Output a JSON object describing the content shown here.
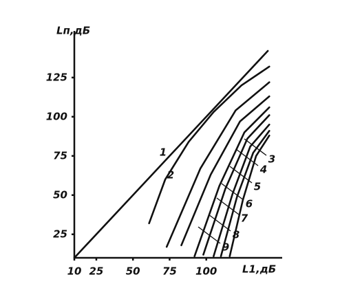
{
  "chart_data": {
    "type": "line",
    "y_label": "Lп,дБ",
    "x_label": "L1,дБ",
    "xlim": [
      10,
      150
    ],
    "ylim": [
      10,
      155
    ],
    "xticks": [
      10,
      25,
      50,
      75,
      100
    ],
    "yticks": [
      25,
      50,
      75,
      100,
      125
    ],
    "color": "#111111",
    "series": [
      {
        "name": "1",
        "x": [
          10,
          75,
          142
        ],
        "values": [
          10,
          75,
          142
        ]
      },
      {
        "name": "2",
        "x": [
          61,
          72,
          88,
          105,
          124,
          143
        ],
        "values": [
          32,
          60,
          84,
          103,
          120,
          132
        ]
      },
      {
        "name": "3",
        "x": [
          73,
          96,
          120,
          143
        ],
        "values": [
          17,
          67,
          104,
          122
        ]
      },
      {
        "name": "4",
        "x": [
          83,
          103,
          123,
          143
        ],
        "values": [
          18,
          63,
          97,
          113
        ]
      },
      {
        "name": "5",
        "x": [
          92,
          109,
          126,
          143
        ],
        "values": [
          11,
          56,
          90,
          106
        ]
      },
      {
        "name": "6",
        "x": [
          98,
          113,
          128,
          143
        ],
        "values": [
          12,
          54,
          86,
          101
        ]
      },
      {
        "name": "7",
        "x": [
          105,
          118,
          130,
          143
        ],
        "values": [
          11,
          51,
          81,
          95
        ]
      },
      {
        "name": "8",
        "x": [
          110,
          121,
          132,
          143
        ],
        "values": [
          11,
          49,
          77,
          91
        ]
      },
      {
        "name": "9",
        "x": [
          116,
          125,
          134,
          143
        ],
        "values": [
          11,
          47,
          75,
          88
        ]
      }
    ]
  }
}
